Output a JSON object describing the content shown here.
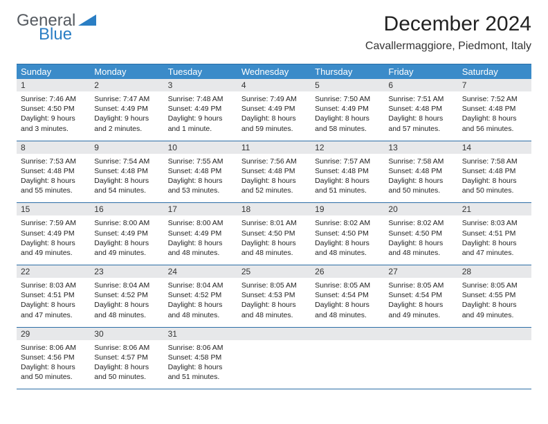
{
  "logo": {
    "line1": "General",
    "line2": "Blue",
    "triangle_color": "#2a7ec4",
    "text_gray": "#555a60"
  },
  "title": "December 2024",
  "location": "Cavallermaggiore, Piedmont, Italy",
  "colors": {
    "header_bar": "#3b8bc9",
    "header_text": "#ffffff",
    "daynum_bg": "#e7e8ea",
    "rule": "#2a6ca6",
    "body_text": "#222222"
  },
  "weekdays": [
    "Sunday",
    "Monday",
    "Tuesday",
    "Wednesday",
    "Thursday",
    "Friday",
    "Saturday"
  ],
  "weeks": [
    [
      {
        "n": "1",
        "sr": "7:46 AM",
        "ss": "4:50 PM",
        "dl": "9 hours and 3 minutes."
      },
      {
        "n": "2",
        "sr": "7:47 AM",
        "ss": "4:49 PM",
        "dl": "9 hours and 2 minutes."
      },
      {
        "n": "3",
        "sr": "7:48 AM",
        "ss": "4:49 PM",
        "dl": "9 hours and 1 minute."
      },
      {
        "n": "4",
        "sr": "7:49 AM",
        "ss": "4:49 PM",
        "dl": "8 hours and 59 minutes."
      },
      {
        "n": "5",
        "sr": "7:50 AM",
        "ss": "4:49 PM",
        "dl": "8 hours and 58 minutes."
      },
      {
        "n": "6",
        "sr": "7:51 AM",
        "ss": "4:48 PM",
        "dl": "8 hours and 57 minutes."
      },
      {
        "n": "7",
        "sr": "7:52 AM",
        "ss": "4:48 PM",
        "dl": "8 hours and 56 minutes."
      }
    ],
    [
      {
        "n": "8",
        "sr": "7:53 AM",
        "ss": "4:48 PM",
        "dl": "8 hours and 55 minutes."
      },
      {
        "n": "9",
        "sr": "7:54 AM",
        "ss": "4:48 PM",
        "dl": "8 hours and 54 minutes."
      },
      {
        "n": "10",
        "sr": "7:55 AM",
        "ss": "4:48 PM",
        "dl": "8 hours and 53 minutes."
      },
      {
        "n": "11",
        "sr": "7:56 AM",
        "ss": "4:48 PM",
        "dl": "8 hours and 52 minutes."
      },
      {
        "n": "12",
        "sr": "7:57 AM",
        "ss": "4:48 PM",
        "dl": "8 hours and 51 minutes."
      },
      {
        "n": "13",
        "sr": "7:58 AM",
        "ss": "4:48 PM",
        "dl": "8 hours and 50 minutes."
      },
      {
        "n": "14",
        "sr": "7:58 AM",
        "ss": "4:48 PM",
        "dl": "8 hours and 50 minutes."
      }
    ],
    [
      {
        "n": "15",
        "sr": "7:59 AM",
        "ss": "4:49 PM",
        "dl": "8 hours and 49 minutes."
      },
      {
        "n": "16",
        "sr": "8:00 AM",
        "ss": "4:49 PM",
        "dl": "8 hours and 49 minutes."
      },
      {
        "n": "17",
        "sr": "8:00 AM",
        "ss": "4:49 PM",
        "dl": "8 hours and 48 minutes."
      },
      {
        "n": "18",
        "sr": "8:01 AM",
        "ss": "4:50 PM",
        "dl": "8 hours and 48 minutes."
      },
      {
        "n": "19",
        "sr": "8:02 AM",
        "ss": "4:50 PM",
        "dl": "8 hours and 48 minutes."
      },
      {
        "n": "20",
        "sr": "8:02 AM",
        "ss": "4:50 PM",
        "dl": "8 hours and 48 minutes."
      },
      {
        "n": "21",
        "sr": "8:03 AM",
        "ss": "4:51 PM",
        "dl": "8 hours and 47 minutes."
      }
    ],
    [
      {
        "n": "22",
        "sr": "8:03 AM",
        "ss": "4:51 PM",
        "dl": "8 hours and 47 minutes."
      },
      {
        "n": "23",
        "sr": "8:04 AM",
        "ss": "4:52 PM",
        "dl": "8 hours and 48 minutes."
      },
      {
        "n": "24",
        "sr": "8:04 AM",
        "ss": "4:52 PM",
        "dl": "8 hours and 48 minutes."
      },
      {
        "n": "25",
        "sr": "8:05 AM",
        "ss": "4:53 PM",
        "dl": "8 hours and 48 minutes."
      },
      {
        "n": "26",
        "sr": "8:05 AM",
        "ss": "4:54 PM",
        "dl": "8 hours and 48 minutes."
      },
      {
        "n": "27",
        "sr": "8:05 AM",
        "ss": "4:54 PM",
        "dl": "8 hours and 49 minutes."
      },
      {
        "n": "28",
        "sr": "8:05 AM",
        "ss": "4:55 PM",
        "dl": "8 hours and 49 minutes."
      }
    ],
    [
      {
        "n": "29",
        "sr": "8:06 AM",
        "ss": "4:56 PM",
        "dl": "8 hours and 50 minutes."
      },
      {
        "n": "30",
        "sr": "8:06 AM",
        "ss": "4:57 PM",
        "dl": "8 hours and 50 minutes."
      },
      {
        "n": "31",
        "sr": "8:06 AM",
        "ss": "4:58 PM",
        "dl": "8 hours and 51 minutes."
      },
      null,
      null,
      null,
      null
    ]
  ],
  "labels": {
    "sunrise": "Sunrise:",
    "sunset": "Sunset:",
    "daylight": "Daylight:"
  }
}
